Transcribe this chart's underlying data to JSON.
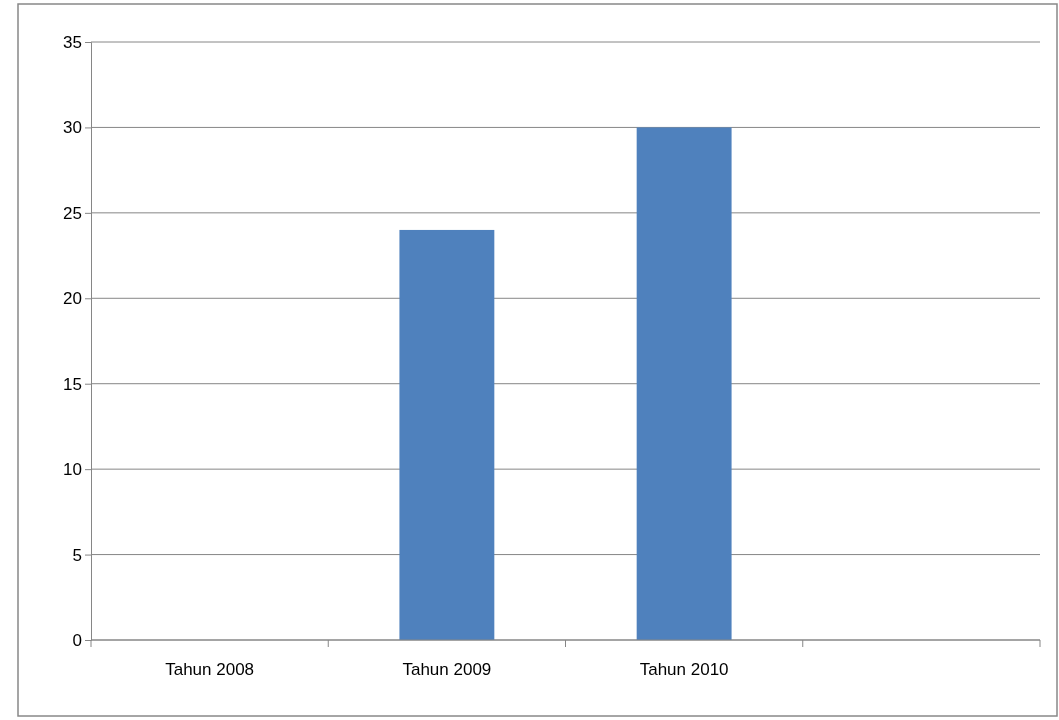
{
  "chart_data": {
    "type": "bar",
    "categories": [
      "Tahun 2008",
      "Tahun 2009",
      "Tahun 2010",
      null
    ],
    "values": [
      null,
      24,
      30,
      null
    ],
    "color": "#4f81bd",
    "ylim": [
      0,
      35
    ],
    "yticks": [
      0,
      5,
      10,
      15,
      20,
      25,
      30,
      35
    ],
    "grid": "y"
  }
}
